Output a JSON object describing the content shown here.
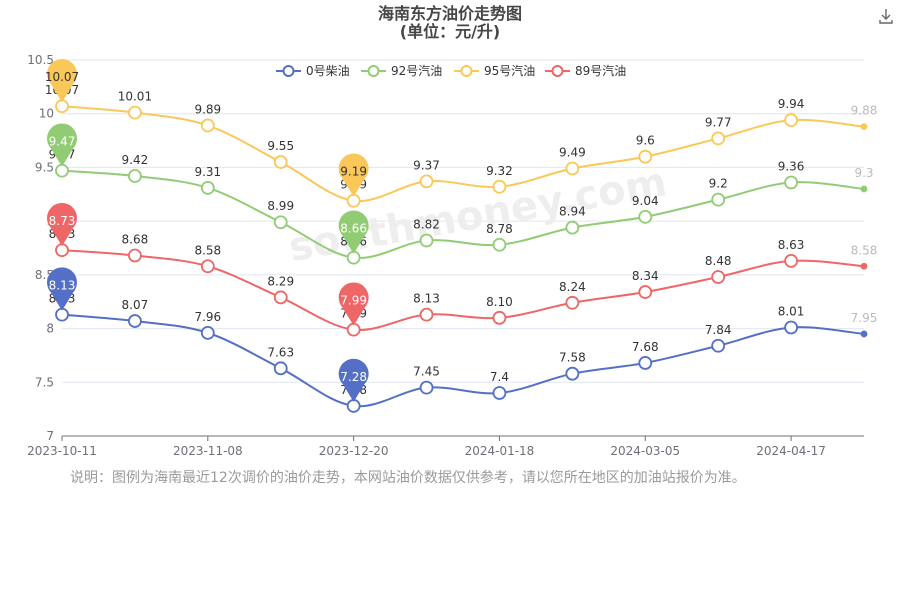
{
  "chart_data": {
    "type": "line",
    "title": "海南东方油价走势图",
    "subtitle": "(单位：元/升)",
    "note": "说明：图例为海南最近12次调价的油价走势，本网站油价数据仅供参考，请以您所在地区的加油站报价为准。",
    "watermark": "southmoney.com",
    "download_icon": "download-icon",
    "x_tick_labels": [
      "2023-10-11",
      "2023-11-08",
      "2023-12-20",
      "2024-01-18",
      "2024-03-05",
      "2024-04-17"
    ],
    "x_tick_at": [
      0,
      2,
      4,
      6,
      8,
      10
    ],
    "y_ticks": [
      "7",
      "7.5",
      "8",
      "8.5",
      "9",
      "9.5",
      "10",
      "10.5"
    ],
    "ylim": [
      7,
      10.5
    ],
    "grid": true,
    "legend_position": "top",
    "series": [
      {
        "name": "0号柴油",
        "color": "#5470c6",
        "values": [
          8.13,
          8.07,
          7.96,
          7.63,
          7.28,
          7.45,
          7.4,
          7.58,
          7.68,
          7.84,
          8.01,
          7.95
        ],
        "labels": [
          "8.13",
          "8.07",
          "7.96",
          "7.63",
          "7.28",
          "7.45",
          "7.4",
          "7.58",
          "7.68",
          "7.84",
          "8.01",
          "7.95"
        ],
        "pin_max": "8.13",
        "pin_min": "7.28"
      },
      {
        "name": "92号汽油",
        "color": "#91cc75",
        "values": [
          9.47,
          9.42,
          9.31,
          8.99,
          8.66,
          8.82,
          8.78,
          8.94,
          9.04,
          9.2,
          9.36,
          9.3
        ],
        "labels": [
          "9.47",
          "9.42",
          "9.31",
          "8.99",
          "8.66",
          "8.82",
          "8.78",
          "8.94",
          "9.04",
          "9.2",
          "9.36",
          "9.3"
        ],
        "pin_max": "9.47",
        "pin_min": "8.66"
      },
      {
        "name": "95号汽油",
        "color": "#fac858",
        "values": [
          10.07,
          10.01,
          9.89,
          9.55,
          9.19,
          9.37,
          9.32,
          9.49,
          9.6,
          9.77,
          9.94,
          9.88
        ],
        "labels": [
          "10.07",
          "10.01",
          "9.89",
          "9.55",
          "9.19",
          "9.37",
          "9.32",
          "9.49",
          "9.6",
          "9.77",
          "9.94",
          "9.88"
        ],
        "pin_max": "10.07",
        "pin_min": "9.19"
      },
      {
        "name": "89号汽油",
        "color": "#ee6666",
        "values": [
          8.73,
          8.68,
          8.58,
          8.29,
          7.99,
          8.13,
          8.1,
          8.24,
          8.34,
          8.48,
          8.63,
          8.58
        ],
        "labels": [
          "8.73",
          "8.68",
          "8.58",
          "8.29",
          "7.99",
          "8.13",
          "8.10",
          "8.24",
          "8.34",
          "8.48",
          "8.63",
          "8.58"
        ],
        "pin_max": "8.73",
        "pin_min": "7.99"
      }
    ]
  }
}
